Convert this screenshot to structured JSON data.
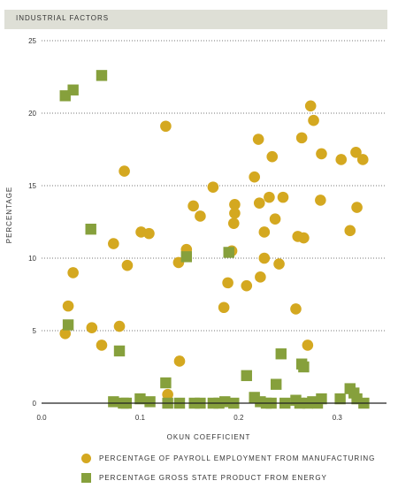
{
  "chart_data": {
    "type": "scatter",
    "title": "INDUSTRIAL FACTORS",
    "xlabel": "OKUN COEFFICIENT",
    "ylabel": "PERCENTAGE",
    "xlim": [
      0.0,
      0.35
    ],
    "ylim": [
      0,
      25
    ],
    "x_ticks": [
      "0.0",
      "0.1",
      "0.2",
      "0.3"
    ],
    "y_ticks": [
      "0",
      "5",
      "10",
      "15",
      "20",
      "25"
    ],
    "grid": "horizontal dotted",
    "legend_position": "bottom",
    "series": [
      {
        "name": "PERCENTAGE OF PAYROLL EMPLOYMENT FROM MANUFACTURING",
        "color": "#d4a820",
        "marker": "circle",
        "points": [
          [
            0.024,
            4.8
          ],
          [
            0.027,
            6.7
          ],
          [
            0.032,
            9.0
          ],
          [
            0.051,
            5.2
          ],
          [
            0.061,
            4.0
          ],
          [
            0.073,
            11.0
          ],
          [
            0.079,
            5.3
          ],
          [
            0.084,
            16.0
          ],
          [
            0.087,
            9.5
          ],
          [
            0.101,
            11.8
          ],
          [
            0.109,
            11.7
          ],
          [
            0.126,
            19.1
          ],
          [
            0.128,
            0.6
          ],
          [
            0.139,
            9.7
          ],
          [
            0.14,
            2.9
          ],
          [
            0.147,
            10.6
          ],
          [
            0.154,
            13.6
          ],
          [
            0.161,
            12.9
          ],
          [
            0.174,
            14.9
          ],
          [
            0.185,
            6.6
          ],
          [
            0.189,
            8.3
          ],
          [
            0.193,
            10.5
          ],
          [
            0.195,
            12.4
          ],
          [
            0.196,
            13.7
          ],
          [
            0.196,
            13.1
          ],
          [
            0.208,
            8.1
          ],
          [
            0.216,
            15.6
          ],
          [
            0.22,
            18.2
          ],
          [
            0.221,
            13.8
          ],
          [
            0.222,
            8.7
          ],
          [
            0.226,
            10.0
          ],
          [
            0.226,
            11.8
          ],
          [
            0.231,
            14.2
          ],
          [
            0.234,
            17.0
          ],
          [
            0.237,
            12.7
          ],
          [
            0.241,
            9.6
          ],
          [
            0.245,
            14.2
          ],
          [
            0.258,
            6.5
          ],
          [
            0.26,
            11.5
          ],
          [
            0.264,
            18.3
          ],
          [
            0.266,
            11.4
          ],
          [
            0.27,
            4.0
          ],
          [
            0.273,
            20.5
          ],
          [
            0.276,
            19.5
          ],
          [
            0.283,
            14.0
          ],
          [
            0.284,
            17.2
          ],
          [
            0.304,
            16.8
          ],
          [
            0.313,
            11.9
          ],
          [
            0.319,
            17.3
          ],
          [
            0.32,
            13.5
          ],
          [
            0.326,
            16.8
          ]
        ]
      },
      {
        "name": "PERCENTAGE GROSS STATE PRODUCT FROM ENERGY",
        "color": "#86a03c",
        "marker": "square",
        "points": [
          [
            0.024,
            21.2
          ],
          [
            0.027,
            5.4
          ],
          [
            0.032,
            21.6
          ],
          [
            0.05,
            12.0
          ],
          [
            0.061,
            22.6
          ],
          [
            0.073,
            0.1
          ],
          [
            0.079,
            3.6
          ],
          [
            0.083,
            0.0
          ],
          [
            0.086,
            0.0
          ],
          [
            0.1,
            0.3
          ],
          [
            0.11,
            0.1
          ],
          [
            0.126,
            1.4
          ],
          [
            0.128,
            0.0
          ],
          [
            0.14,
            0.0
          ],
          [
            0.147,
            10.1
          ],
          [
            0.155,
            0.0
          ],
          [
            0.161,
            0.0
          ],
          [
            0.174,
            0.0
          ],
          [
            0.18,
            0.0
          ],
          [
            0.186,
            0.1
          ],
          [
            0.19,
            10.4
          ],
          [
            0.195,
            0.0
          ],
          [
            0.208,
            1.9
          ],
          [
            0.216,
            0.4
          ],
          [
            0.222,
            0.1
          ],
          [
            0.228,
            0.0
          ],
          [
            0.233,
            0.0
          ],
          [
            0.238,
            1.3
          ],
          [
            0.243,
            3.4
          ],
          [
            0.247,
            0.0
          ],
          [
            0.258,
            0.2
          ],
          [
            0.262,
            0.0
          ],
          [
            0.264,
            2.7
          ],
          [
            0.266,
            2.5
          ],
          [
            0.27,
            0.0
          ],
          [
            0.275,
            0.1
          ],
          [
            0.28,
            0.0
          ],
          [
            0.284,
            0.3
          ],
          [
            0.303,
            0.3
          ],
          [
            0.313,
            1.0
          ],
          [
            0.317,
            0.7
          ],
          [
            0.32,
            0.3
          ],
          [
            0.327,
            0.0
          ]
        ]
      }
    ]
  }
}
